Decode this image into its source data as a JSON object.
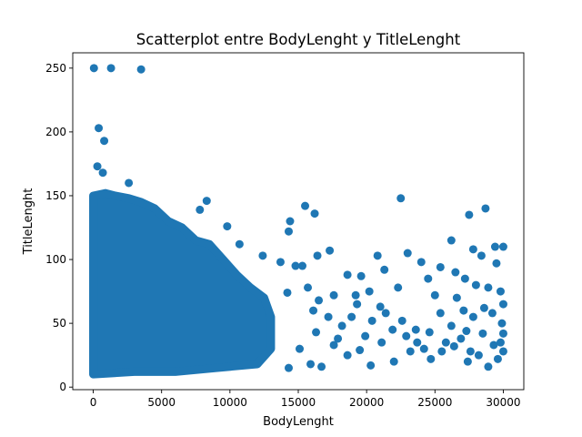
{
  "chart_data": {
    "type": "scatter",
    "title": "Scatterplot entre BodyLenght y TitleLenght",
    "xlabel": "BodyLenght",
    "ylabel": "TitleLenght",
    "xlim": [
      -1500,
      31500
    ],
    "ylim": [
      -2,
      262
    ],
    "xticks": [
      0,
      5000,
      10000,
      15000,
      20000,
      25000,
      30000
    ],
    "yticks": [
      0,
      50,
      100,
      150,
      200,
      250
    ],
    "color": "#1f77b4",
    "grid": false,
    "dense_region": [
      [
        0,
        150
      ],
      [
        900,
        152
      ],
      [
        1600,
        150
      ],
      [
        2600,
        148
      ],
      [
        3500,
        145
      ],
      [
        4500,
        140
      ],
      [
        5500,
        130
      ],
      [
        6500,
        125
      ],
      [
        7500,
        115
      ],
      [
        8500,
        112
      ],
      [
        9500,
        100
      ],
      [
        10500,
        88
      ],
      [
        11500,
        78
      ],
      [
        12500,
        70
      ],
      [
        13000,
        55
      ],
      [
        13000,
        30
      ],
      [
        12000,
        18
      ],
      [
        9000,
        15
      ],
      [
        6000,
        12
      ],
      [
        3000,
        12
      ],
      [
        0,
        10
      ]
    ],
    "points": [
      [
        50,
        250
      ],
      [
        1300,
        250
      ],
      [
        3500,
        249
      ],
      [
        400,
        203
      ],
      [
        800,
        193
      ],
      [
        300,
        173
      ],
      [
        700,
        168
      ],
      [
        2600,
        160
      ],
      [
        22500,
        148
      ],
      [
        28700,
        140
      ],
      [
        27500,
        135
      ],
      [
        15500,
        142
      ],
      [
        16200,
        136
      ],
      [
        14400,
        130
      ],
      [
        14300,
        122
      ],
      [
        8300,
        146
      ],
      [
        9800,
        126
      ],
      [
        7800,
        139
      ],
      [
        10700,
        112
      ],
      [
        12400,
        103
      ],
      [
        13700,
        98
      ],
      [
        14800,
        95
      ],
      [
        15300,
        95
      ],
      [
        16400,
        103
      ],
      [
        17300,
        107
      ],
      [
        18600,
        88
      ],
      [
        19600,
        87
      ],
      [
        20800,
        103
      ],
      [
        21300,
        92
      ],
      [
        23000,
        105
      ],
      [
        24000,
        98
      ],
      [
        25400,
        94
      ],
      [
        26200,
        115
      ],
      [
        27800,
        108
      ],
      [
        28400,
        103
      ],
      [
        29400,
        110
      ],
      [
        30000,
        110
      ],
      [
        29500,
        97
      ],
      [
        26500,
        90
      ],
      [
        27200,
        85
      ],
      [
        28000,
        80
      ],
      [
        24500,
        85
      ],
      [
        22300,
        78
      ],
      [
        20200,
        75
      ],
      [
        19200,
        72
      ],
      [
        17600,
        72
      ],
      [
        16500,
        68
      ],
      [
        15700,
        78
      ],
      [
        14200,
        74
      ],
      [
        16100,
        60
      ],
      [
        17200,
        55
      ],
      [
        18200,
        48
      ],
      [
        19300,
        65
      ],
      [
        20400,
        52
      ],
      [
        21400,
        58
      ],
      [
        22600,
        52
      ],
      [
        23600,
        45
      ],
      [
        24600,
        43
      ],
      [
        25400,
        58
      ],
      [
        26200,
        48
      ],
      [
        27100,
        60
      ],
      [
        27800,
        55
      ],
      [
        28600,
        62
      ],
      [
        29200,
        58
      ],
      [
        29800,
        75
      ],
      [
        30000,
        65
      ],
      [
        29900,
        50
      ],
      [
        30000,
        42
      ],
      [
        29800,
        35
      ],
      [
        30000,
        28
      ],
      [
        29600,
        22
      ],
      [
        28900,
        16
      ],
      [
        28200,
        25
      ],
      [
        27400,
        20
      ],
      [
        26400,
        32
      ],
      [
        25500,
        28
      ],
      [
        24700,
        22
      ],
      [
        23700,
        35
      ],
      [
        22900,
        40
      ],
      [
        22000,
        20
      ],
      [
        21100,
        35
      ],
      [
        20300,
        17
      ],
      [
        19500,
        29
      ],
      [
        18600,
        25
      ],
      [
        17600,
        33
      ],
      [
        16700,
        16
      ],
      [
        15900,
        18
      ],
      [
        15100,
        30
      ],
      [
        14300,
        15
      ],
      [
        16300,
        43
      ],
      [
        17900,
        38
      ],
      [
        19900,
        40
      ],
      [
        21900,
        45
      ],
      [
        23200,
        28
      ],
      [
        24200,
        30
      ],
      [
        25800,
        35
      ],
      [
        26900,
        38
      ],
      [
        27600,
        28
      ],
      [
        28500,
        42
      ],
      [
        29300,
        33
      ],
      [
        18900,
        55
      ],
      [
        21000,
        63
      ],
      [
        25000,
        72
      ],
      [
        26600,
        70
      ],
      [
        28900,
        78
      ],
      [
        27300,
        44
      ]
    ]
  }
}
